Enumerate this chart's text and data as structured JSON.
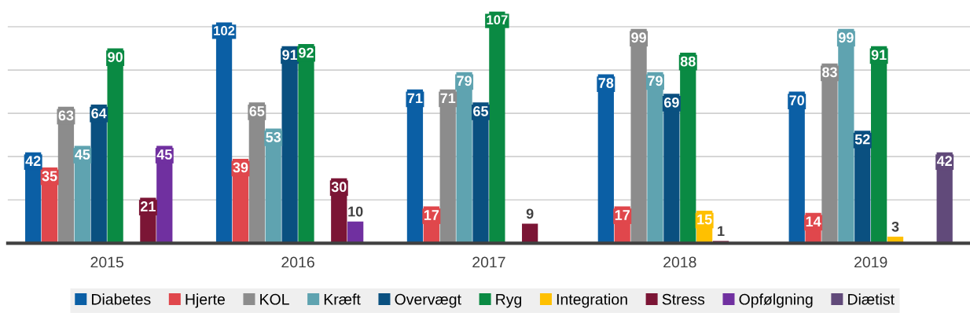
{
  "chart_data": {
    "type": "bar",
    "categories": [
      "2015",
      "2016",
      "2017",
      "2018",
      "2019"
    ],
    "series": [
      {
        "name": "Diabetes",
        "color": "#0b5fa5",
        "values": [
          42,
          102,
          71,
          78,
          70
        ]
      },
      {
        "name": "Hjerte",
        "color": "#e0474c",
        "values": [
          35,
          39,
          17,
          17,
          14
        ]
      },
      {
        "name": "KOL",
        "color": "#8c8c8c",
        "values": [
          63,
          65,
          71,
          99,
          83
        ]
      },
      {
        "name": "Kræft",
        "color": "#5fa3b0",
        "values": [
          45,
          53,
          79,
          79,
          99
        ]
      },
      {
        "name": "Overvægt",
        "color": "#0a5080",
        "values": [
          64,
          91,
          65,
          69,
          52
        ]
      },
      {
        "name": "Ryg",
        "color": "#0a8a43",
        "values": [
          90,
          92,
          107,
          88,
          91
        ]
      },
      {
        "name": "Integration",
        "color": "#ffc000",
        "values": [
          null,
          null,
          null,
          15,
          3
        ]
      },
      {
        "name": "Stress",
        "color": "#7b1535",
        "values": [
          21,
          30,
          9,
          1,
          null
        ]
      },
      {
        "name": "Opfølgning",
        "color": "#7030a0",
        "values": [
          45,
          10,
          null,
          null,
          null
        ]
      },
      {
        "name": "Diætist",
        "color": "#614a7a",
        "values": [
          null,
          null,
          null,
          null,
          42
        ]
      }
    ],
    "yticks": [
      {
        "value": 0,
        "label": null
      },
      {
        "value": 20,
        "label": null
      },
      {
        "value": 40,
        "label": null
      },
      {
        "value": 60,
        "label": null
      },
      {
        "value": 80,
        "label": null
      },
      {
        "value": 100,
        "label": null
      }
    ],
    "grid": "y",
    "legend": "bottom",
    "data_labels": true
  }
}
